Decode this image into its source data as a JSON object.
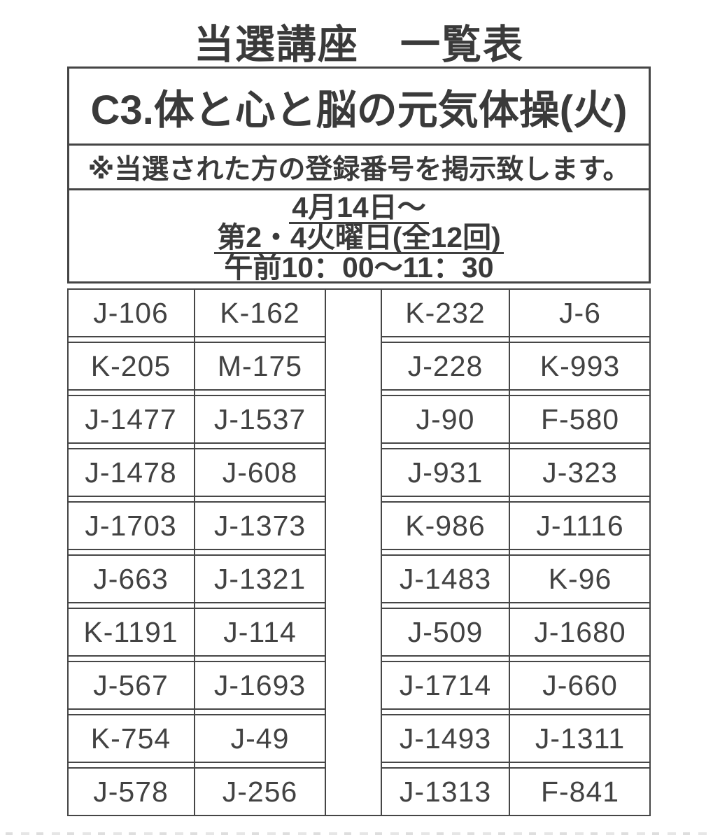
{
  "title": "当選講座　一覧表",
  "course": {
    "name": "C3.体と心と脳の元気体操(火)",
    "note": "※当選された方の登録番号を掲示致します。",
    "schedule": [
      "4月14日～",
      "第2・4火曜日(全12回)",
      "午前10：00～11：30"
    ]
  },
  "registrations": {
    "rows": [
      [
        "J-106",
        "K-162",
        "K-232",
        "J-6"
      ],
      [
        "K-205",
        "M-175",
        "J-228",
        "K-993"
      ],
      [
        "J-1477",
        "J-1537",
        "J-90",
        "F-580"
      ],
      [
        "J-1478",
        "J-608",
        "J-931",
        "J-323"
      ],
      [
        "J-1703",
        "J-1373",
        "K-986",
        "J-1116"
      ],
      [
        "J-663",
        "J-1321",
        "J-1483",
        "K-96"
      ],
      [
        "K-1191",
        "J-114",
        "J-509",
        "J-1680"
      ],
      [
        "J-567",
        "J-1693",
        "J-1714",
        "J-660"
      ],
      [
        "K-754",
        "J-49",
        "J-1493",
        "J-1311"
      ],
      [
        "J-578",
        "J-256",
        "J-1313",
        "F-841"
      ]
    ]
  },
  "colors": {
    "ink": "#3a3a3a",
    "border": "#454545",
    "background": "#ffffff"
  }
}
